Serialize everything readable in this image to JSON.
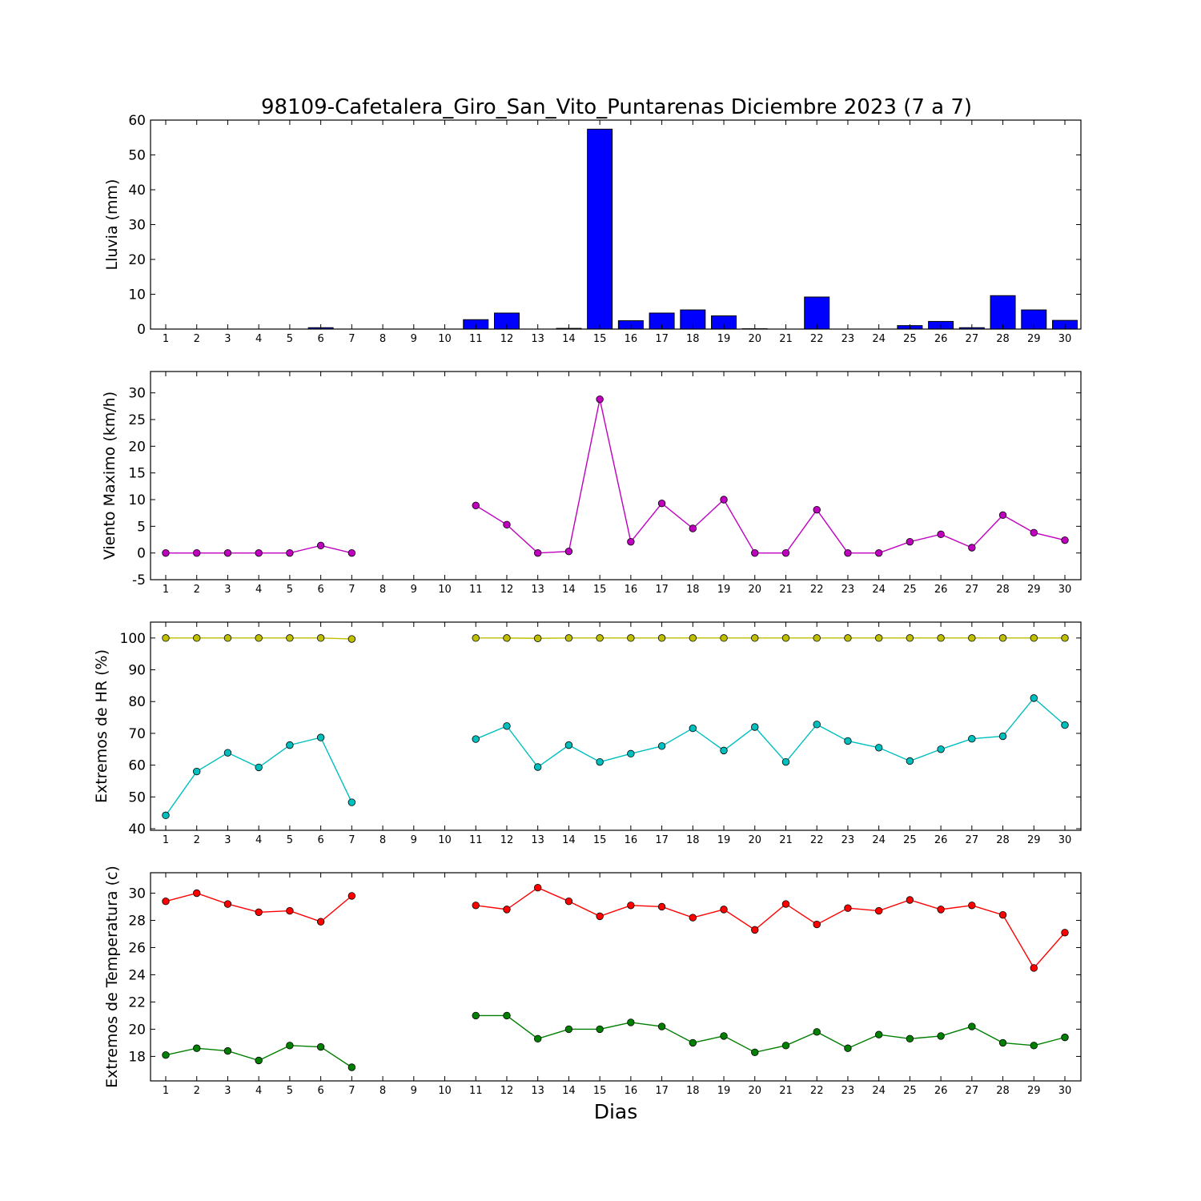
{
  "chart_data": {
    "title": "98109-Cafetalera_Giro_San_Vito_Puntarenas Diciembre 2023  (7 a 7)",
    "xlabel": "Dias",
    "days": [
      1,
      2,
      3,
      4,
      5,
      6,
      7,
      8,
      9,
      10,
      11,
      12,
      13,
      14,
      15,
      16,
      17,
      18,
      19,
      20,
      21,
      22,
      23,
      24,
      25,
      26,
      27,
      28,
      29,
      30
    ],
    "panels": [
      {
        "type": "bar",
        "ylabel": "Lluvia (mm)",
        "ylim": [
          0,
          60
        ],
        "yticks": [
          0,
          10,
          20,
          30,
          40,
          50,
          60
        ],
        "series": [
          {
            "color": "#0000ff",
            "values": [
              0,
              0,
              0,
              0,
              0,
              0.4,
              0,
              null,
              null,
              null,
              2.7,
              4.6,
              0,
              0.2,
              57.4,
              2.4,
              4.6,
              5.5,
              3.8,
              0.1,
              0,
              9.2,
              0,
              0,
              1.0,
              2.2,
              0.4,
              9.6,
              5.5,
              2.5
            ]
          }
        ]
      },
      {
        "type": "line",
        "ylabel": "Viento Maximo (km/h)",
        "ylim": [
          -5,
          34
        ],
        "yticks": [
          -5,
          0,
          5,
          10,
          15,
          20,
          25,
          30
        ],
        "series": [
          {
            "color": "#bf00bf",
            "values": [
              0,
              0,
              0,
              0,
              0,
              1.4,
              0,
              null,
              null,
              null,
              8.9,
              5.3,
              0,
              0.3,
              28.8,
              2.1,
              9.3,
              4.6,
              10.0,
              0,
              0,
              8.1,
              0,
              0,
              2.1,
              3.5,
              1.0,
              7.1,
              3.8,
              2.4
            ]
          }
        ]
      },
      {
        "type": "line",
        "ylabel": "Extremos de HR (%)",
        "ylim": [
          39.5,
          105
        ],
        "yticks": [
          40,
          50,
          60,
          70,
          80,
          90,
          100
        ],
        "series": [
          {
            "color": "#bfbf00",
            "values": [
              100,
              100,
              100,
              100,
              100,
              100,
              99.7,
              null,
              null,
              null,
              100,
              100,
              99.9,
              100,
              100,
              100,
              100,
              100,
              100,
              100,
              100,
              100,
              100,
              100,
              100,
              100,
              100,
              100,
              100,
              100
            ]
          },
          {
            "color": "#00bfbf",
            "values": [
              44.2,
              58.0,
              63.9,
              59.3,
              66.3,
              68.7,
              48.3,
              null,
              null,
              null,
              68.2,
              72.3,
              59.4,
              66.3,
              61.0,
              63.6,
              66.0,
              71.6,
              64.6,
              72.0,
              61.0,
              72.8,
              67.6,
              65.5,
              61.3,
              65.0,
              68.3,
              69.1,
              81.1,
              72.6
            ]
          }
        ]
      },
      {
        "type": "line",
        "ylabel": "Extremos de Temperatura (c)",
        "ylim": [
          16.2,
          31.5
        ],
        "yticks": [
          18,
          20,
          22,
          24,
          26,
          28,
          30
        ],
        "series": [
          {
            "color": "#ff0000",
            "values": [
              29.4,
              30.0,
              29.2,
              28.6,
              28.7,
              27.9,
              29.8,
              null,
              null,
              null,
              29.1,
              28.8,
              30.4,
              29.4,
              28.3,
              29.1,
              29.0,
              28.2,
              28.8,
              27.3,
              29.2,
              27.7,
              28.9,
              28.7,
              29.5,
              28.8,
              29.1,
              28.4,
              24.5,
              27.1
            ]
          },
          {
            "color": "#007f00",
            "values": [
              18.1,
              18.6,
              18.4,
              17.7,
              18.8,
              18.7,
              17.2,
              null,
              null,
              null,
              21.0,
              21.0,
              19.3,
              20.0,
              20.0,
              20.5,
              20.2,
              19.0,
              19.5,
              18.3,
              18.8,
              19.8,
              18.6,
              19.6,
              19.3,
              19.5,
              20.2,
              19.0,
              18.8,
              19.4
            ]
          }
        ]
      }
    ]
  }
}
